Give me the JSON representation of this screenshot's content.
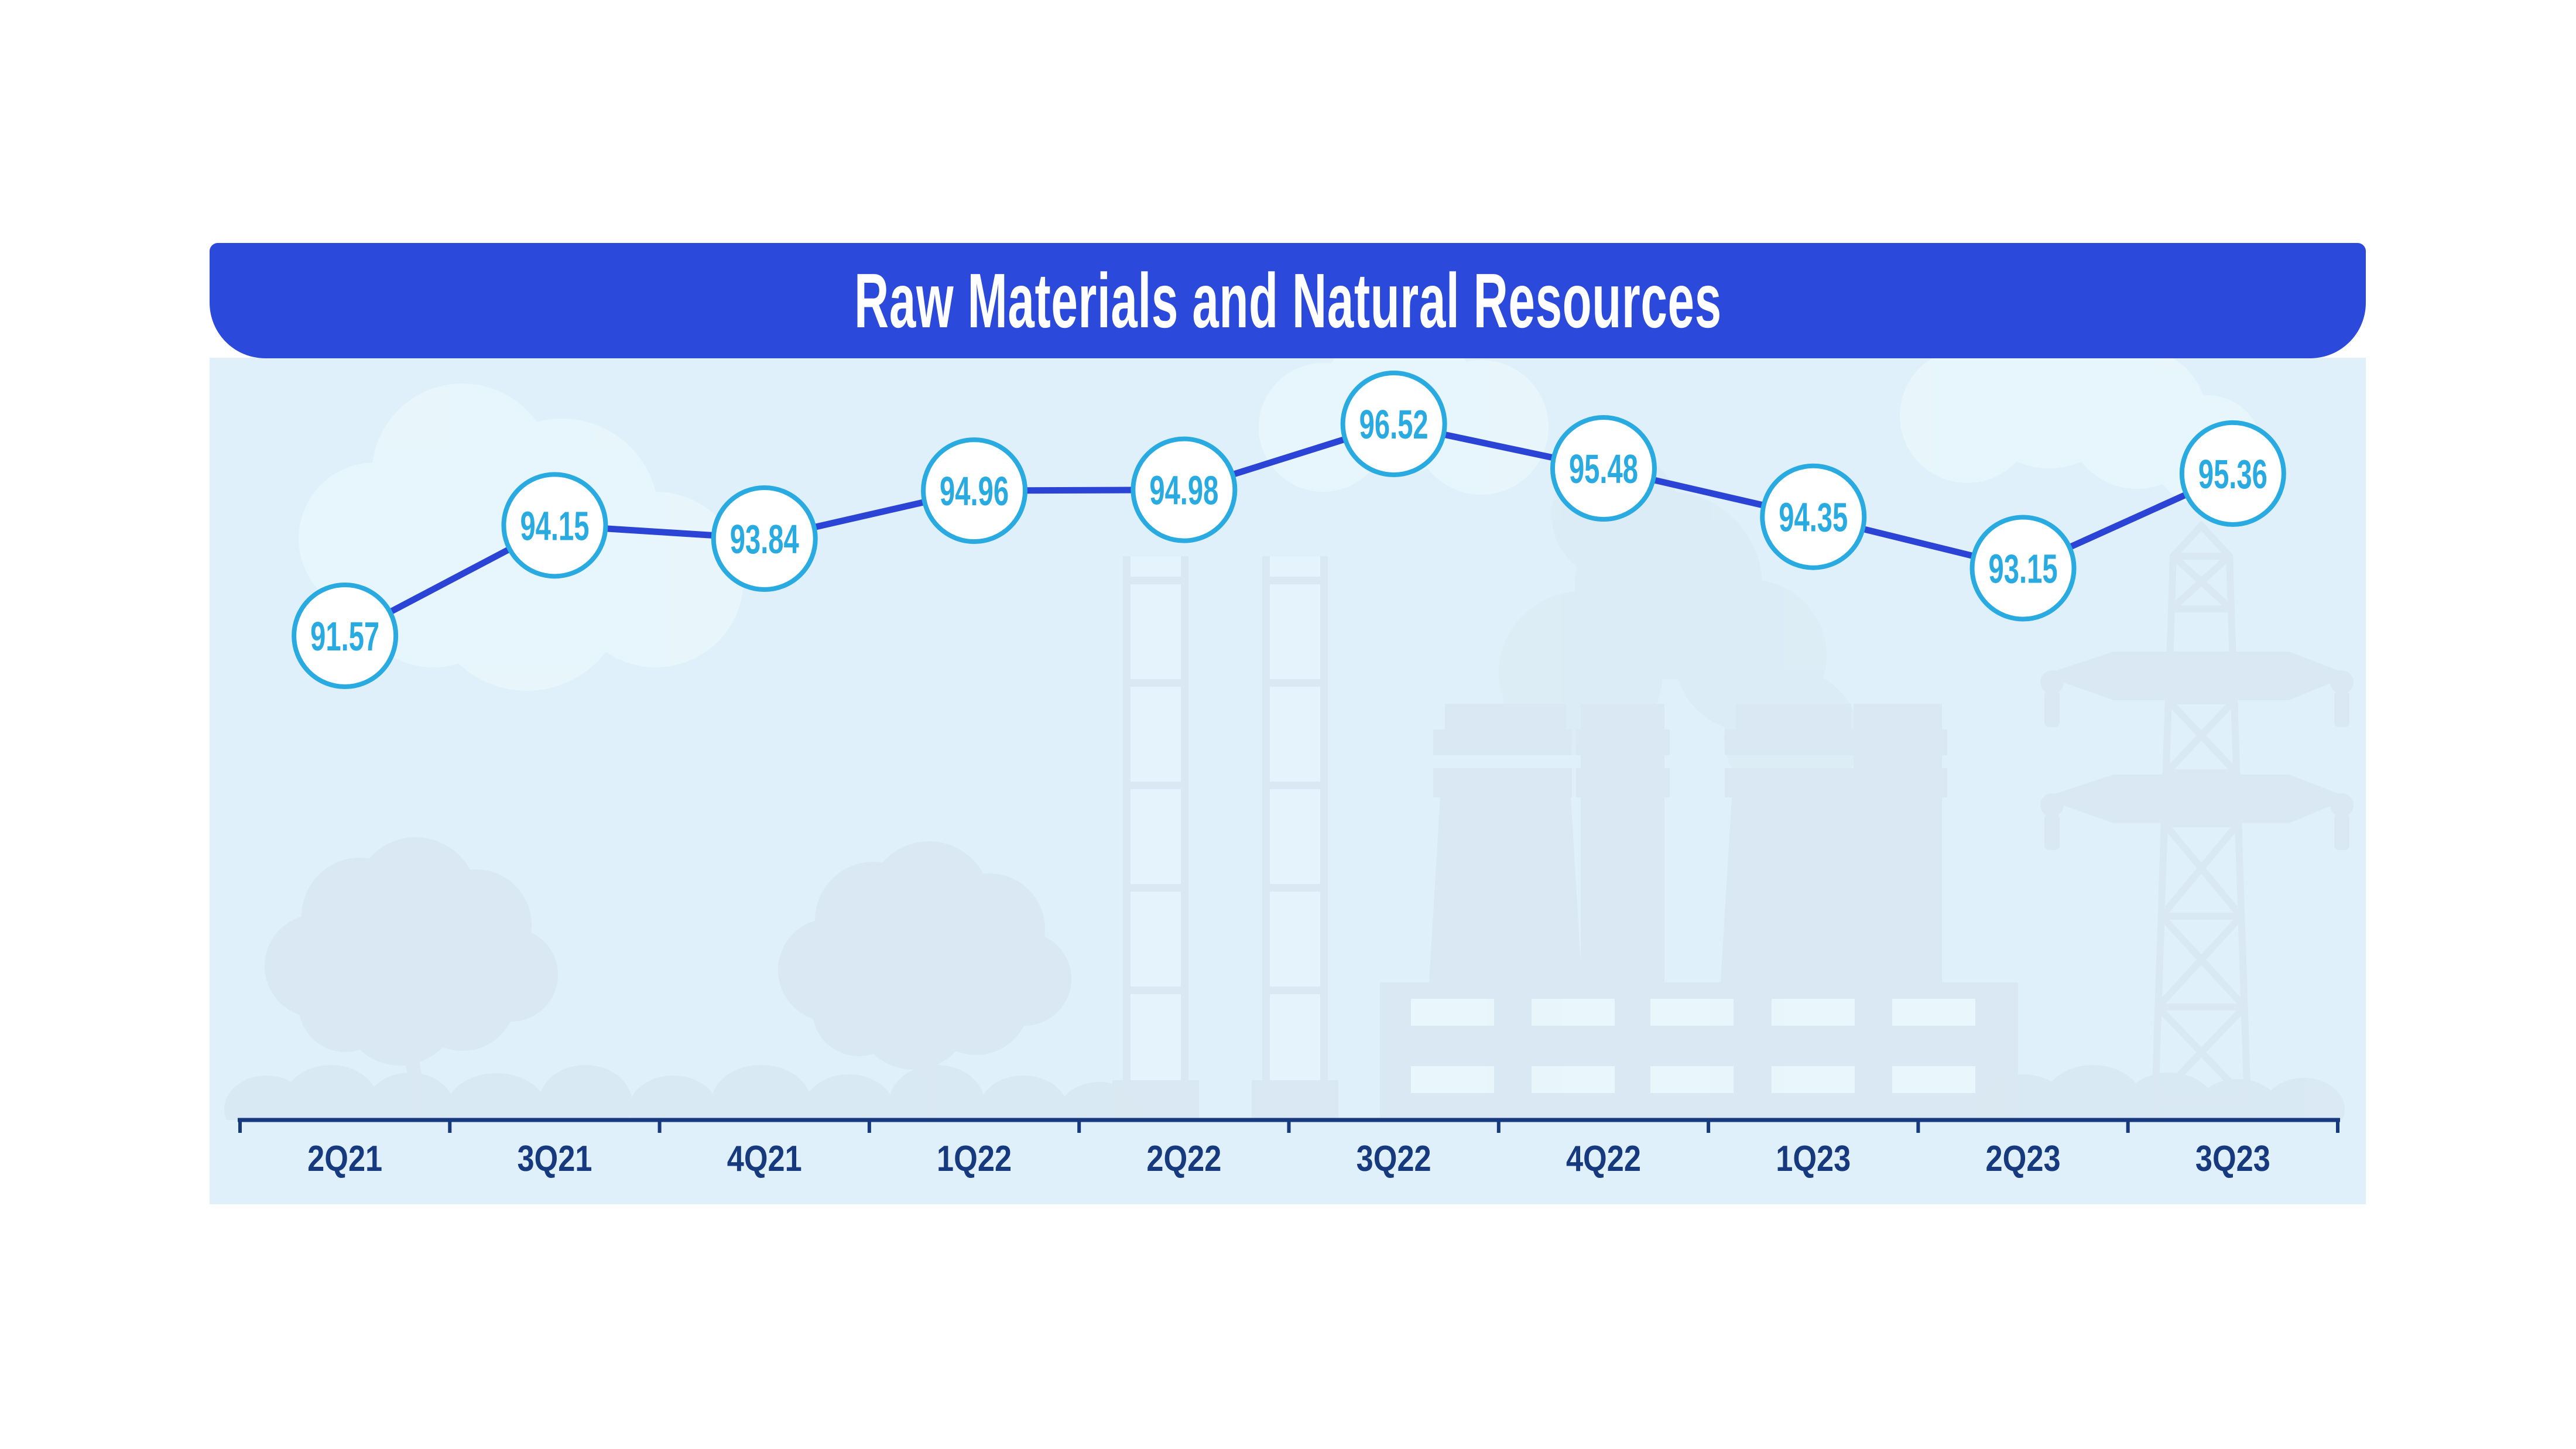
{
  "title": "Raw Materials and Natural Resources",
  "colors": {
    "header_bg": "#2b4adb",
    "header_text": "#ffffff",
    "page_bg": "#ffffff",
    "panel_bg": "#dff0fa",
    "line": "#2b44d6",
    "marker_border": "#29abe2",
    "marker_fill": "#ffffff",
    "marker_value": "#29abe2",
    "axis": "#17397e",
    "axis_label": "#17397e",
    "silhouette": "#d9e8f2",
    "cloud": "#eaf7fd"
  },
  "chart_data": {
    "type": "line",
    "title": "Raw Materials and Natural Resources",
    "categories": [
      "2Q21",
      "3Q21",
      "4Q21",
      "1Q22",
      "2Q22",
      "3Q22",
      "4Q22",
      "1Q23",
      "2Q23",
      "3Q23"
    ],
    "values": [
      91.57,
      94.15,
      93.84,
      94.96,
      94.98,
      96.52,
      95.48,
      94.35,
      93.15,
      95.36
    ],
    "xlabel": "",
    "ylabel": "",
    "ylim": [
      91,
      97
    ],
    "grid": false,
    "legend": false,
    "marker_style": "circle-badge",
    "value_labels": "inside-markers",
    "x_axis_position": "bottom",
    "background_theme": "industrial-landscape"
  }
}
